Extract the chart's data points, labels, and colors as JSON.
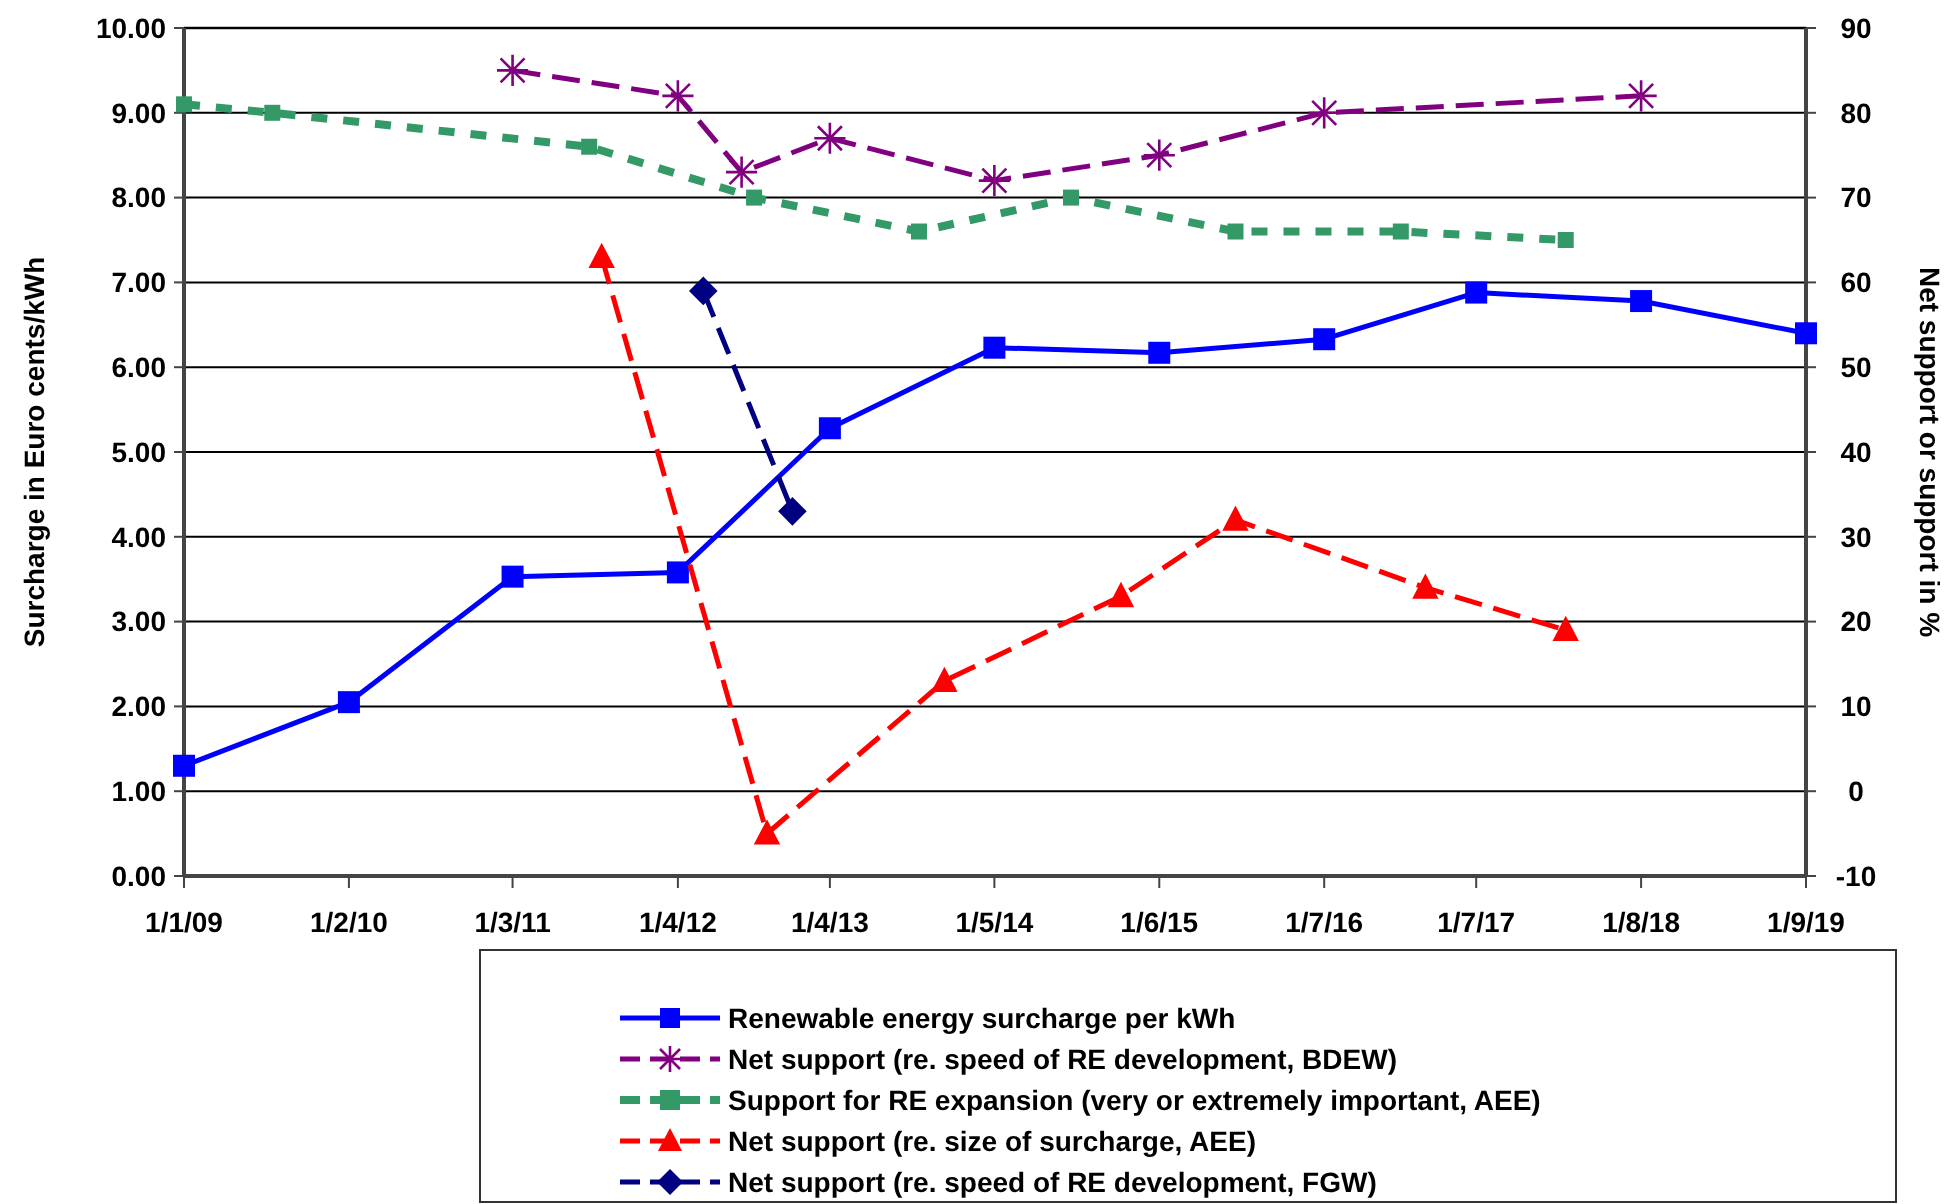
{
  "chart_data": {
    "type": "line",
    "ylabel": "Surcharge in Euro cents/kWh",
    "y2label": "Net support or support in %",
    "xlim": [
      "2009-01-01",
      "2019-09-01"
    ],
    "xticks": [
      {
        "value": "2009-01-01",
        "label": "1/1/09"
      },
      {
        "value": "2010-02-01",
        "label": "1/2/10"
      },
      {
        "value": "2011-03-01",
        "label": "1/3/11"
      },
      {
        "value": "2012-04-01",
        "label": "1/4/12"
      },
      {
        "value": "2013-04-01",
        "label": "1/4/13"
      },
      {
        "value": "2014-05-01",
        "label": "1/5/14"
      },
      {
        "value": "2015-06-01",
        "label": "1/6/15"
      },
      {
        "value": "2016-07-01",
        "label": "1/7/16"
      },
      {
        "value": "2017-07-01",
        "label": "1/7/17"
      },
      {
        "value": "2018-08-01",
        "label": "1/8/18"
      },
      {
        "value": "2019-09-01",
        "label": "1/9/19"
      }
    ],
    "ylim": [
      0,
      10
    ],
    "yticks": [
      {
        "value": 0,
        "label": "0.00"
      },
      {
        "value": 1,
        "label": "1.00"
      },
      {
        "value": 2,
        "label": "2.00"
      },
      {
        "value": 3,
        "label": "3.00"
      },
      {
        "value": 4,
        "label": "4.00"
      },
      {
        "value": 5,
        "label": "5.00"
      },
      {
        "value": 6,
        "label": "6.00"
      },
      {
        "value": 7,
        "label": "7.00"
      },
      {
        "value": 8,
        "label": "8.00"
      },
      {
        "value": 9,
        "label": "9.00"
      },
      {
        "value": 10,
        "label": "10.00"
      }
    ],
    "y2lim": [
      -10,
      90
    ],
    "y2ticks": [
      -10,
      0,
      10,
      20,
      30,
      40,
      50,
      60,
      70,
      80,
      90
    ],
    "grid": "y",
    "legend": "bottom",
    "series": [
      {
        "name": "Renewable energy surcharge per kWh",
        "color": "#0000ff",
        "marker": "square",
        "line_style": "solid",
        "x": [
          "2009-01-01",
          "2010-02-01",
          "2011-03-01",
          "2012-04-01",
          "2013-04-01",
          "2014-05-01",
          "2015-06-01",
          "2016-07-01",
          "2017-07-01",
          "2018-08-01",
          "2019-09-01"
        ],
        "values": [
          1.3,
          2.05,
          3.53,
          3.58,
          5.28,
          6.23,
          6.17,
          6.33,
          6.88,
          6.78,
          6.4
        ]
      },
      {
        "name": "Net support (re. speed of RE development, BDEW)",
        "color": "#800080",
        "marker": "cross",
        "line_style": "dashed",
        "axis": "y2",
        "x": [
          "2011-03-01",
          "2012-04-01",
          "2012-09-01",
          "2013-04-01",
          "2014-05-01",
          "2015-06-01",
          "2016-07-01",
          "2018-08-01"
        ],
        "values": [
          85,
          82,
          73,
          77,
          72,
          75,
          80,
          82
        ]
      },
      {
        "name": "Support for RE expansion (very or extremely important, AEE)",
        "color": "#339966",
        "marker": "square",
        "line_style": "dotted",
        "axis": "y2",
        "x": [
          "2009-01-01",
          "2009-08-01",
          "2011-09-01",
          "2012-10-01",
          "2013-11-01",
          "2014-11-01",
          "2015-12-01",
          "2017-01-01",
          "2018-02-01"
        ],
        "values": [
          81,
          80,
          76,
          70,
          66,
          70,
          66,
          66,
          65
        ]
      },
      {
        "name": "Net support (re. size of surcharge, AEE)",
        "color": "#ff0000",
        "marker": "triangle",
        "line_style": "dashed",
        "axis": "y2",
        "x": [
          "2011-10-01",
          "2012-11-01",
          "2014-01-01",
          "2015-03-01",
          "2015-12-01",
          "2017-03-01",
          "2018-02-01"
        ],
        "values": [
          63,
          -5,
          13,
          23,
          32,
          24,
          19
        ]
      },
      {
        "name": "Net support (re. speed of RE development, FGW)",
        "color": "#000080",
        "marker": "diamond",
        "line_style": "dashed",
        "axis": "y2",
        "x": [
          "2012-06-01",
          "2013-01-01"
        ],
        "values": [
          59,
          33
        ]
      }
    ]
  }
}
